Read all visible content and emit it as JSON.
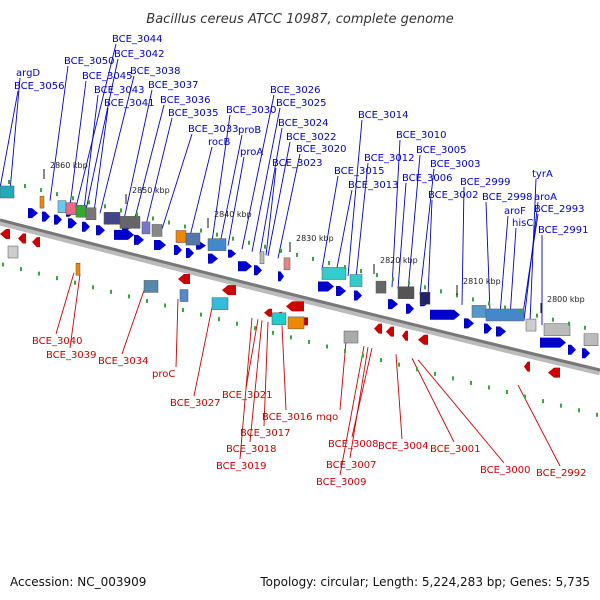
{
  "title": "Bacillus cereus ATCC 10987, complete genome",
  "footer": {
    "accession": "Accession: NC_003909",
    "topology": "Topology: circular; Length: 5,224,283 bp; Genes: 5,735"
  },
  "colors": {
    "forward": "#0000cc",
    "reverse": "#cc0000",
    "backbone": "#888888"
  },
  "ticks": [
    "2860 kbp",
    "2850 kbp",
    "2840 kbp",
    "2830 kbp",
    "2820 kbp",
    "2810 kbp",
    "2800 kbp"
  ],
  "forward_genes": [
    "argD",
    "BCE_3056",
    "BCE_3050",
    "BCE_3044",
    "BCE_3042",
    "BCE_3045",
    "BCE_3038",
    "BCE_3043",
    "BCE_3037",
    "BCE_3041",
    "BCE_3036",
    "BCE_3035",
    "BCE_3033",
    "rocB",
    "BCE_3030",
    "proB",
    "proA",
    "BCE_3026",
    "BCE_3025",
    "BCE_3024",
    "BCE_3022",
    "BCE_3020",
    "BCE_3023",
    "BCE_3014",
    "BCE_3010",
    "BCE_3012",
    "BCE_3015",
    "BCE_3013",
    "BCE_3005",
    "BCE_3003",
    "BCE_3006",
    "BCE_3002",
    "BCE_2999",
    "BCE_2998",
    "aroF",
    "hisC",
    "tyrA",
    "aroA",
    "BCE_2993",
    "BCE_2991"
  ],
  "reverse_genes": [
    "BCE_3040",
    "BCE_3039",
    "BCE_3034",
    "proC",
    "BCE_3027",
    "BCE_3021",
    "BCE_3016",
    "BCE_3017",
    "BCE_3018",
    "BCE_3019",
    "mqo",
    "BCE_3008",
    "BCE_3007",
    "BCE_3009",
    "BCE_3004",
    "BCE_3001",
    "BCE_3000",
    "BCE_2992"
  ]
}
